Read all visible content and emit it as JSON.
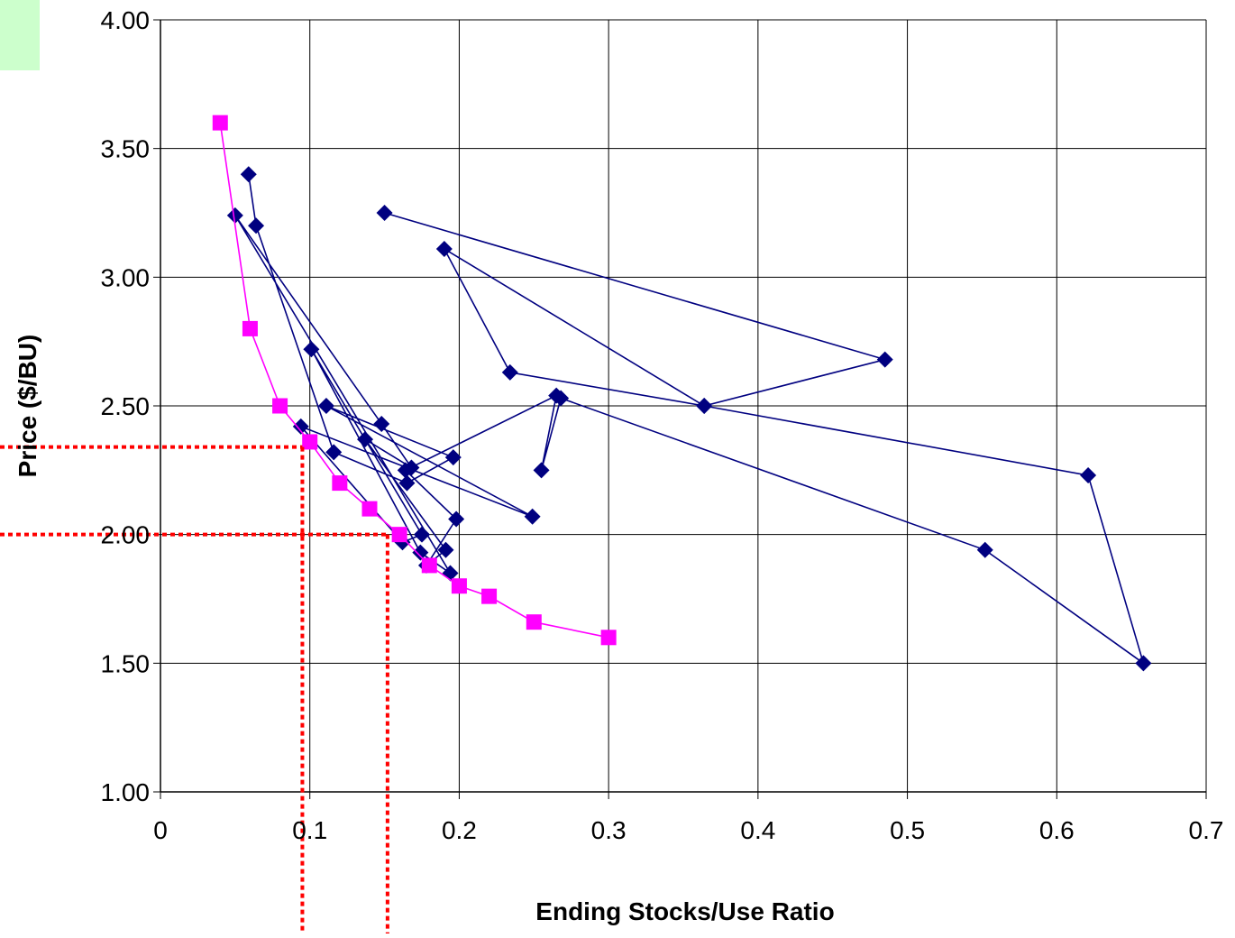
{
  "chart_data": {
    "type": "scatter",
    "xlabel": "Ending Stocks/Use Ratio",
    "ylabel": "Price ($/BU)",
    "xlim": [
      0,
      0.7
    ],
    "ylim": [
      1.0,
      4.0
    ],
    "x_ticks": [
      "0",
      "0.1",
      "0.2",
      "0.3",
      "0.4",
      "0.5",
      "0.6",
      "0.7"
    ],
    "y_ticks": [
      "1.00",
      "1.50",
      "2.00",
      "2.50",
      "3.00",
      "3.50",
      "4.00"
    ],
    "grid": true,
    "series": [
      {
        "marker": "diamond",
        "color": "#000080",
        "points": [
          [
            0.059,
            3.4
          ],
          [
            0.064,
            3.2
          ],
          [
            0.116,
            2.32
          ],
          [
            0.165,
            2.2
          ],
          [
            0.196,
            2.3
          ],
          [
            0.111,
            2.5
          ],
          [
            0.249,
            2.07
          ],
          [
            0.094,
            2.42
          ],
          [
            0.162,
            1.97
          ],
          [
            0.175,
            2.0
          ],
          [
            0.101,
            2.72
          ],
          [
            0.174,
            1.93
          ],
          [
            0.194,
            1.85
          ],
          [
            0.05,
            3.24
          ],
          [
            0.148,
            2.43
          ],
          [
            0.168,
            2.26
          ],
          [
            0.137,
            2.37
          ],
          [
            0.191,
            1.94
          ],
          [
            0.178,
            1.88
          ],
          [
            0.198,
            2.06
          ],
          [
            0.164,
            2.25
          ],
          [
            0.265,
            2.54
          ],
          [
            0.255,
            2.25
          ],
          [
            0.268,
            2.53
          ],
          [
            0.552,
            1.94
          ],
          [
            0.658,
            1.5
          ],
          [
            0.621,
            2.23
          ],
          [
            0.364,
            2.5
          ],
          [
            0.234,
            2.63
          ],
          [
            0.19,
            3.11
          ],
          [
            0.364,
            2.5
          ],
          [
            0.485,
            2.68
          ],
          [
            0.15,
            3.25
          ]
        ]
      },
      {
        "marker": "square",
        "color": "#ff00ff",
        "points": [
          [
            0.04,
            3.6
          ],
          [
            0.06,
            2.8
          ],
          [
            0.08,
            2.5
          ],
          [
            0.1,
            2.36
          ],
          [
            0.12,
            2.2
          ],
          [
            0.14,
            2.1
          ],
          [
            0.16,
            2.0
          ],
          [
            0.18,
            1.88
          ],
          [
            0.2,
            1.8
          ],
          [
            0.22,
            1.76
          ],
          [
            0.25,
            1.66
          ],
          [
            0.3,
            1.6
          ]
        ]
      }
    ],
    "reference_lines": [
      {
        "x": 0.095,
        "y": 2.34,
        "color": "#ff0000"
      },
      {
        "x": 0.152,
        "y": 2.0,
        "color": "#ff0000"
      }
    ]
  }
}
